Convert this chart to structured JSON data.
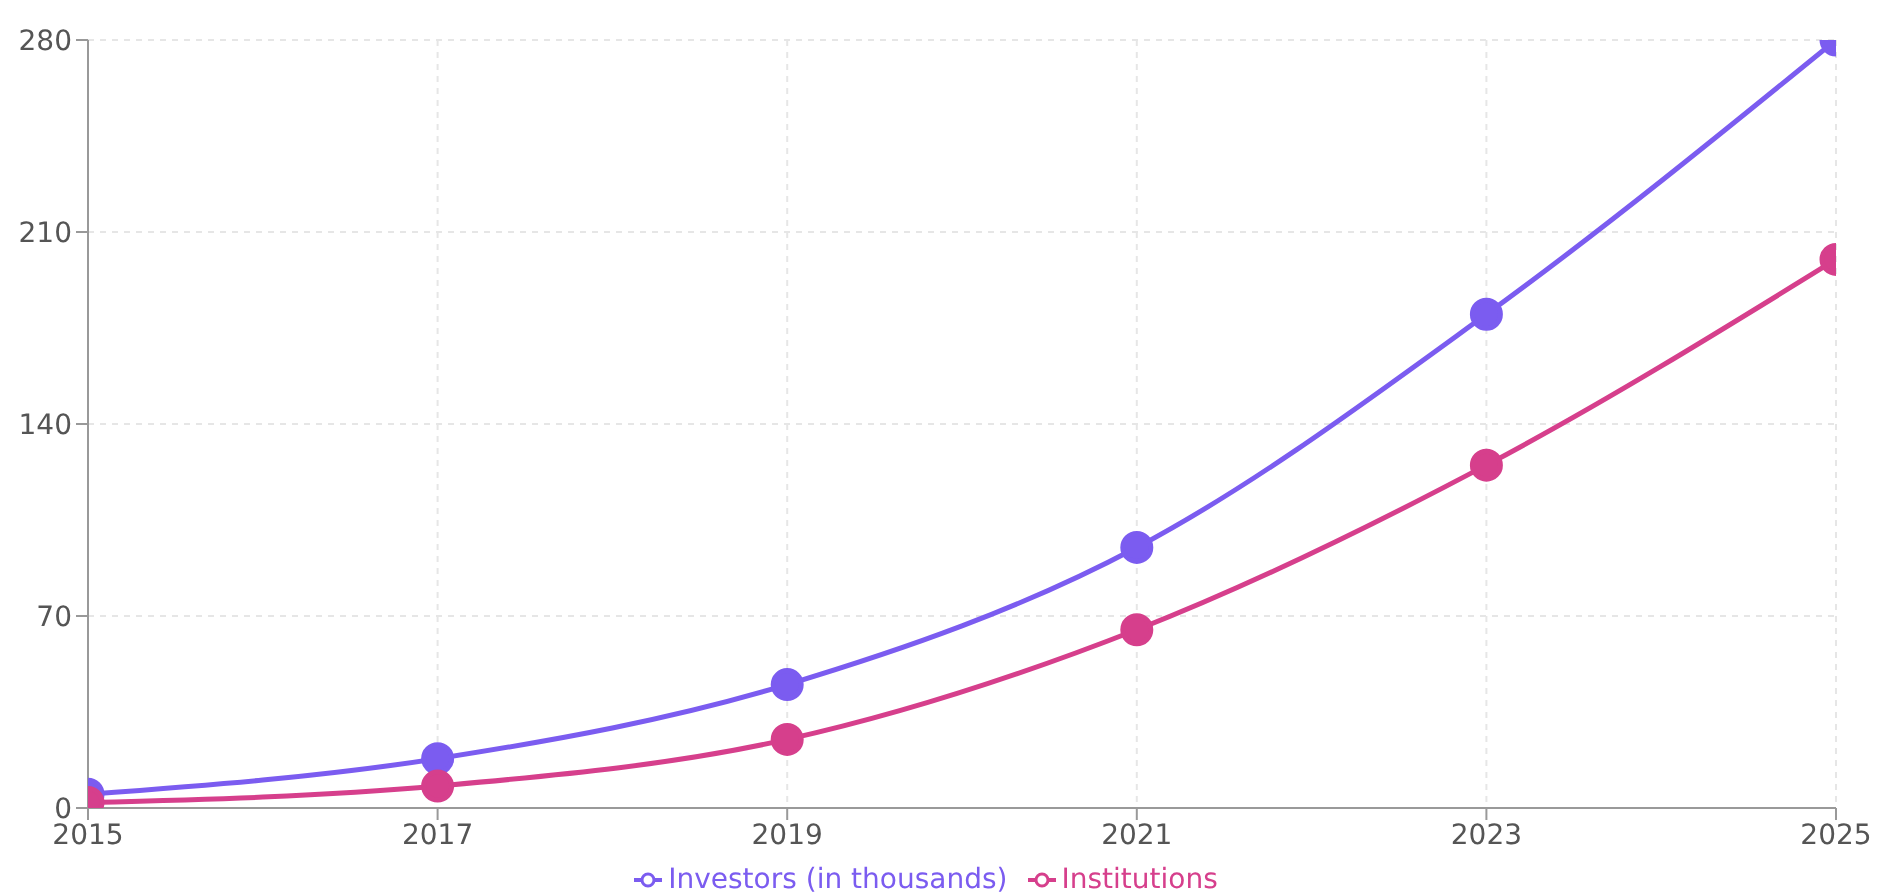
{
  "chart_data": {
    "type": "line",
    "x": [
      2015,
      2017,
      2019,
      2021,
      2023,
      2025
    ],
    "series": [
      {
        "name": "Investors (in thousands)",
        "color": "#7b5cf0",
        "values": [
          5,
          18,
          45,
          95,
          180,
          280
        ]
      },
      {
        "name": "Institutions",
        "color": "#d63f8c",
        "values": [
          2,
          8,
          25,
          65,
          125,
          200
        ]
      }
    ],
    "xlim": [
      2015,
      2025
    ],
    "xticks": [
      2015,
      2017,
      2019,
      2021,
      2023,
      2025
    ],
    "ylim": [
      0,
      280
    ],
    "yticks": [
      0,
      70,
      140,
      210,
      280
    ],
    "grid": true,
    "legend": "bottom",
    "marker": "circle",
    "line_style": "solid"
  }
}
